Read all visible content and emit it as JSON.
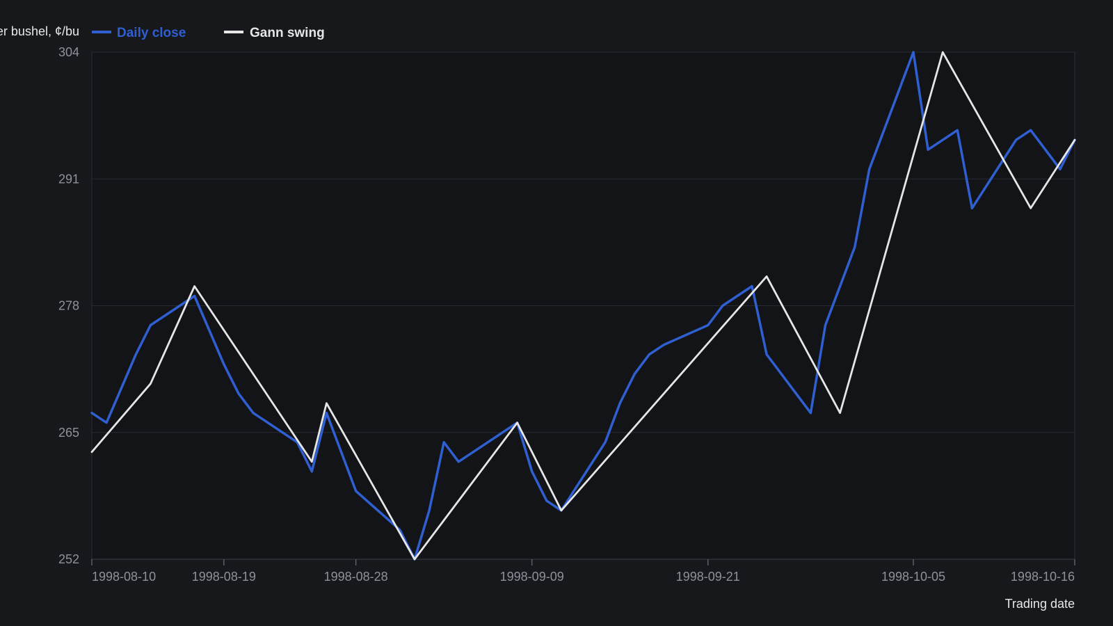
{
  "chart_data": {
    "type": "line",
    "ylabel": "Price per bushel, ¢/bu",
    "xlabel": "Trading date",
    "ylim": [
      252,
      304
    ],
    "yticks": [
      252,
      265,
      278,
      291,
      304
    ],
    "xticks": [
      "1998-08-10",
      "1998-08-19",
      "1998-08-28",
      "1998-09-09",
      "1998-09-21",
      "1998-10-05",
      "1998-10-16"
    ],
    "xrange": [
      "1998-08-10",
      "1998-10-16"
    ],
    "grid": "horizontal",
    "legend_position": "top-left",
    "series": [
      {
        "name": "Daily close",
        "color": "#2f5fd0",
        "x": [
          "1998-08-10",
          "1998-08-11",
          "1998-08-13",
          "1998-08-14",
          "1998-08-17",
          "1998-08-19",
          "1998-08-20",
          "1998-08-21",
          "1998-08-24",
          "1998-08-25",
          "1998-08-26",
          "1998-08-28",
          "1998-08-31",
          "1998-09-01",
          "1998-09-02",
          "1998-09-03",
          "1998-09-04",
          "1998-09-08",
          "1998-09-09",
          "1998-09-10",
          "1998-09-11",
          "1998-09-14",
          "1998-09-15",
          "1998-09-16",
          "1998-09-17",
          "1998-09-18",
          "1998-09-21",
          "1998-09-22",
          "1998-09-23",
          "1998-09-24",
          "1998-09-25",
          "1998-09-28",
          "1998-09-29",
          "1998-09-30",
          "1998-10-01",
          "1998-10-02",
          "1998-10-05",
          "1998-10-06",
          "1998-10-07",
          "1998-10-08",
          "1998-10-09",
          "1998-10-12",
          "1998-10-13",
          "1998-10-14",
          "1998-10-15",
          "1998-10-16"
        ],
        "y": [
          267.0,
          266.0,
          273.0,
          276.0,
          279.0,
          272.0,
          269.0,
          267.0,
          264.0,
          261.0,
          267.0,
          259.0,
          255.0,
          252.0,
          257.0,
          264.0,
          262.0,
          266.0,
          261.0,
          258.0,
          257.0,
          264.0,
          268.0,
          271.0,
          273.0,
          274.0,
          276.0,
          278.0,
          279.0,
          280.0,
          273.0,
          267.0,
          276.0,
          280.0,
          284.0,
          292.0,
          304.0,
          294.0,
          295.0,
          296.0,
          288.0,
          295.0,
          296.0,
          294.0,
          292.0,
          295.0
        ]
      },
      {
        "name": "Gann swing",
        "color": "#e6e6e6",
        "x": [
          "1998-08-10",
          "1998-08-14",
          "1998-08-17",
          "1998-08-25",
          "1998-08-26",
          "1998-09-01",
          "1998-09-08",
          "1998-09-11",
          "1998-09-25",
          "1998-09-30",
          "1998-10-07",
          "1998-10-13",
          "1998-10-16"
        ],
        "y": [
          263.0,
          270.0,
          280.0,
          262.0,
          268.0,
          252.0,
          266.0,
          257.0,
          281.0,
          267.0,
          304.0,
          288.0,
          295.0
        ]
      }
    ]
  }
}
